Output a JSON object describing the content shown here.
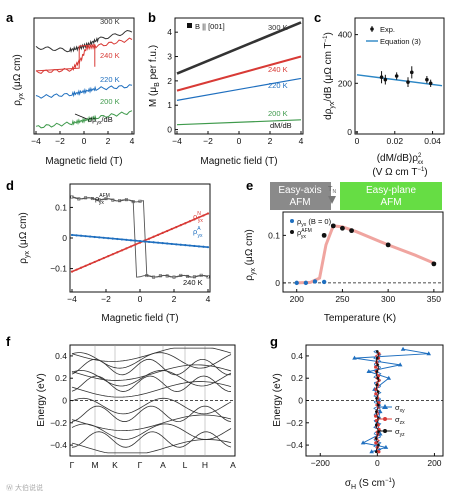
{
  "colors": {
    "black": "#333333",
    "red": "#d83a36",
    "blue": "#1f6fbf",
    "green": "#3f9a4c",
    "gray": "#6f6f6f",
    "lightblue": "#2b86c5",
    "salmon": "#f0a5a0",
    "easyaxis_bg": "#8a8a8a",
    "easyplane_bg": "#66dd44"
  },
  "chart_data": [
    {
      "panel": "a",
      "type": "line",
      "xlabel": "Magnetic field (T)",
      "ylabel": "ρ_yx (μΩ cm)",
      "xlim": [
        -4,
        4
      ],
      "xticks": [
        "−4",
        "−2",
        "0",
        "2",
        "4"
      ],
      "annotation": "dρ_yx/dB",
      "series": [
        {
          "name": "300 K",
          "color": "#333333",
          "x": [
            -4,
            -1.2,
            -0.3,
            0.3,
            1.2,
            4
          ],
          "y": [
            0.6,
            0.58,
            0.6,
            0.62,
            0.66,
            0.72
          ]
        },
        {
          "name": "240 K",
          "color": "#d83a36",
          "x": [
            -4,
            -1,
            -0.2,
            0.2,
            1,
            4
          ],
          "y": [
            0.42,
            0.44,
            0.52,
            0.6,
            0.61,
            0.66
          ]
        },
        {
          "name": "220 K",
          "color": "#1f6fbf",
          "x": [
            -4,
            -1,
            0,
            1,
            4
          ],
          "y": [
            0.24,
            0.26,
            0.28,
            0.3,
            0.32
          ]
        },
        {
          "name": "200 K",
          "color": "#3f9a4c",
          "x": [
            -4,
            -1,
            0,
            1,
            4
          ],
          "y": [
            0.02,
            0.05,
            0.07,
            0.09,
            0.13
          ]
        }
      ]
    },
    {
      "panel": "b",
      "type": "line",
      "xlabel": "Magnetic field (T)",
      "ylabel": "M (μB per f.u.)",
      "xlim": [
        -4,
        4
      ],
      "ylim": [
        -0.1,
        4.5
      ],
      "xticks": [
        "−4",
        "−2",
        "0",
        "2",
        "4"
      ],
      "yticks": [
        "0",
        "1",
        "2",
        "3",
        "4"
      ],
      "legend": "B || [001]",
      "annotation": "dM/dB",
      "series": [
        {
          "name": "300 K",
          "color": "#333333",
          "x": [
            -4,
            4
          ],
          "y": [
            2.3,
            4.4
          ]
        },
        {
          "name": "240 K",
          "color": "#d83a36",
          "x": [
            -4,
            4
          ],
          "y": [
            1.6,
            3.0
          ]
        },
        {
          "name": "220 K",
          "color": "#1f6fbf",
          "x": [
            -4,
            4
          ],
          "y": [
            1.2,
            2.1
          ]
        },
        {
          "name": "200 K",
          "color": "#3f9a4c",
          "x": [
            -4,
            4
          ],
          "y": [
            0.2,
            0.4
          ]
        }
      ]
    },
    {
      "panel": "c",
      "type": "scatter",
      "xlabel": "(dM/dB)ρ²_xx (V Ω cm T⁻¹)",
      "ylabel": "dρ_yx/dB (μΩ cm T⁻¹)",
      "xlim": [
        0,
        0.045
      ],
      "ylim": [
        0,
        460
      ],
      "xticks": [
        "0",
        "0.02",
        "0.04"
      ],
      "yticks": [
        "0",
        "200",
        "400"
      ],
      "legend": [
        "Exp.",
        "Equation (3)"
      ],
      "points": {
        "x": [
          0.013,
          0.015,
          0.021,
          0.027,
          0.029,
          0.037,
          0.039
        ],
        "y": [
          225,
          215,
          230,
          205,
          245,
          215,
          200
        ],
        "err": [
          25,
          20,
          15,
          20,
          25,
          15,
          15
        ]
      },
      "fit": {
        "x": [
          0,
          0.045
        ],
        "y": [
          235,
          190
        ]
      }
    },
    {
      "panel": "d",
      "type": "line",
      "xlabel": "Magnetic field (T)",
      "ylabel": "ρ_yx (μΩ cm)",
      "xlim": [
        -4,
        4
      ],
      "ylim": [
        -0.17,
        0.17
      ],
      "xticks": [
        "−4",
        "−2",
        "0",
        "2",
        "4"
      ],
      "yticks": [
        "−0.1",
        "0",
        "0.1"
      ],
      "annotation": "240 K",
      "series": [
        {
          "name": "ρ^AFM_yx",
          "color": "#555555",
          "x": [
            -4,
            -1,
            -0.3,
            0.3,
            1,
            4
          ],
          "y": [
            0.12,
            0.12,
            -0.12,
            -0.12,
            -0.12,
            -0.13
          ]
        },
        {
          "name": "ρ^N_yx",
          "color": "#d83a36",
          "x": [
            -4,
            4
          ],
          "y": [
            -0.11,
            0.08
          ]
        },
        {
          "name": "ρ^A_yx",
          "color": "#1f6fbf",
          "x": [
            -4,
            4
          ],
          "y": [
            0.01,
            -0.03
          ]
        }
      ]
    },
    {
      "panel": "e",
      "type": "scatter",
      "xlabel": "Temperature (K)",
      "ylabel": "ρ_yx (μΩ cm)",
      "xlim": [
        185,
        360
      ],
      "ylim": [
        -0.015,
        0.145
      ],
      "xticks": [
        "200",
        "250",
        "300",
        "350"
      ],
      "yticks": [
        "0",
        "0.1"
      ],
      "regions": [
        "Easy-axis AFM",
        "T_N",
        "Easy-plane AFM"
      ],
      "legend": [
        "ρ_yx (B = 0)",
        "ρ^AFM_yx"
      ],
      "zero_field": {
        "x": [
          200,
          210,
          220,
          230
        ],
        "y": [
          0,
          0,
          0.003,
          0.002
        ]
      },
      "afm": {
        "x": [
          230,
          240,
          250,
          260,
          300,
          350
        ],
        "y": [
          0.1,
          0.12,
          0.115,
          0.11,
          0.08,
          0.04
        ]
      }
    },
    {
      "panel": "f",
      "type": "line",
      "ylabel": "Energy (eV)",
      "ylim": [
        -0.48,
        0.48
      ],
      "yticks": [
        "0.4",
        "0.2",
        "0",
        "−0.2",
        "−0.4"
      ],
      "kpoints": [
        "Γ",
        "M",
        "K",
        "Γ",
        "A",
        "L",
        "H",
        "A"
      ]
    },
    {
      "panel": "g",
      "type": "line",
      "xlabel": "σ_H (S cm⁻¹)",
      "ylabel": "Energy (eV)",
      "xlim": [
        -250,
        230
      ],
      "ylim": [
        -0.48,
        0.48
      ],
      "xticks": [
        "−200",
        "0",
        "200"
      ],
      "yticks": [
        "0.4",
        "0.2",
        "0",
        "−0.2",
        "−0.4"
      ],
      "legend": [
        "σ_xy",
        "σ_zx",
        "σ_yz"
      ],
      "sigma_xy": {
        "E": [
          -0.46,
          -0.42,
          -0.38,
          -0.3,
          -0.2,
          -0.1,
          0,
          0.1,
          0.2,
          0.26,
          0.32,
          0.38,
          0.42,
          0.46
        ],
        "S": [
          -20,
          30,
          -50,
          10,
          0,
          10,
          5,
          -10,
          40,
          -30,
          80,
          -80,
          180,
          90
        ]
      }
    }
  ],
  "footer": {
    "watermark": "Ⓦ 大伯说说"
  }
}
